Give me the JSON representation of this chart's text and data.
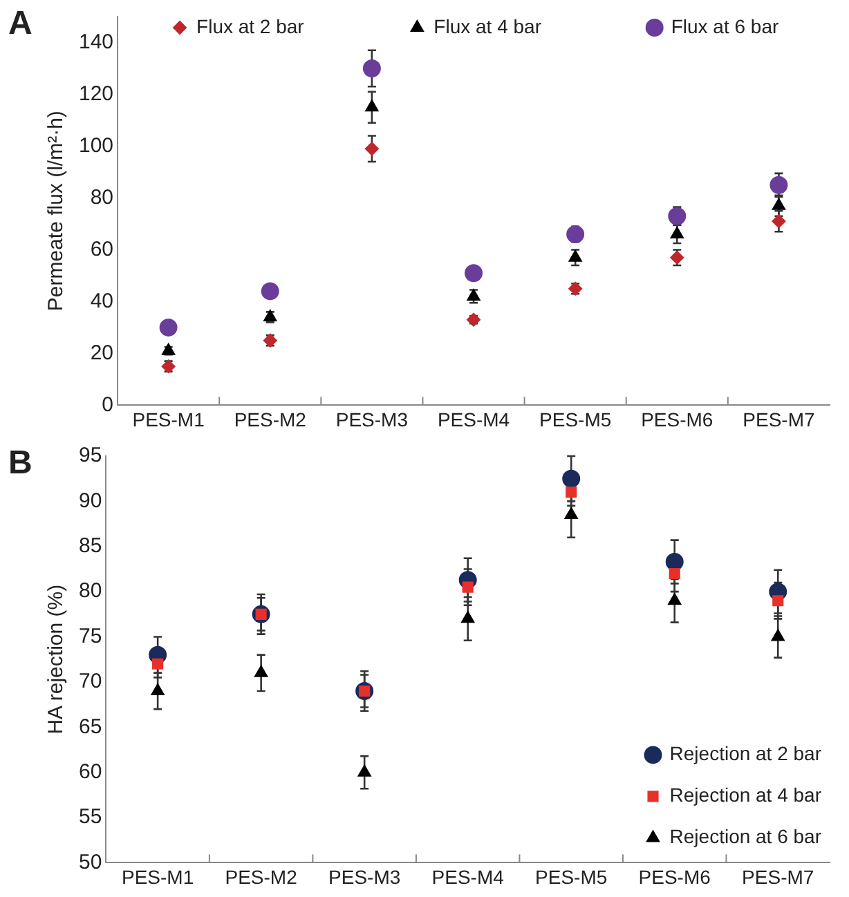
{
  "chart_data": [
    {
      "type": "scatter",
      "annotations": [
        "A"
      ],
      "ylabel": "Permeate flux (l/m²·h)",
      "categories": [
        "PES-M1",
        "PES-M2",
        "PES-M3",
        "PES-M4",
        "PES-M5",
        "PES-M6",
        "PES-M7"
      ],
      "ylim": [
        0,
        150
      ],
      "yticks": [
        0,
        20,
        40,
        60,
        80,
        100,
        120,
        140
      ],
      "grid": false,
      "legend": "top",
      "series": [
        {
          "name": "Flux at 2 bar",
          "color": "#c0272d",
          "marker": "diamond",
          "values": [
            15,
            25,
            99,
            33,
            45,
            57,
            71
          ],
          "errors": [
            2,
            2,
            5,
            1.5,
            2,
            3,
            4
          ]
        },
        {
          "name": "Flux at 4 bar",
          "color": "#000000",
          "marker": "triangle",
          "values": [
            21,
            34,
            115,
            42,
            57,
            66,
            77
          ],
          "errors": [
            1.5,
            2,
            6,
            2.5,
            3,
            3.5,
            4
          ]
        },
        {
          "name": "Flux at 6 bar",
          "color": "#6a3d9a",
          "marker": "circle",
          "values": [
            30,
            44,
            130,
            51,
            66,
            73,
            85
          ],
          "errors": [
            null,
            null,
            7,
            null,
            3,
            3.5,
            4.5
          ]
        }
      ]
    },
    {
      "type": "scatter",
      "annotations": [
        "B"
      ],
      "ylabel": "HA rejection (%)",
      "categories": [
        "PES-M1",
        "PES-M2",
        "PES-M3",
        "PES-M4",
        "PES-M5",
        "PES-M6",
        "PES-M7"
      ],
      "ylim": [
        50,
        95
      ],
      "yticks": [
        50,
        55,
        60,
        65,
        70,
        75,
        80,
        85,
        90,
        95
      ],
      "grid": false,
      "legend": "bottom right",
      "series": [
        {
          "name": "Rejection at 2 bar",
          "color": "#1a2a5a",
          "marker": "circle",
          "values": [
            73,
            77.5,
            69,
            81.3,
            92.5,
            83.3,
            80
          ],
          "errors": [
            2,
            2.2,
            2.2,
            2.4,
            2.5,
            2.4,
            2.4
          ]
        },
        {
          "name": "Rejection at 4 bar",
          "color": "#e8302a",
          "marker": "square",
          "values": [
            72,
            77.5,
            69,
            80.5,
            91,
            82,
            79
          ],
          "errors": [
            1.5,
            1.8,
            1.8,
            2,
            1.5,
            2,
            2
          ]
        },
        {
          "name": "Rejection at 6 bar",
          "color": "#000000",
          "marker": "triangle",
          "values": [
            69,
            71,
            60,
            77,
            88.5,
            79,
            75
          ],
          "errors": [
            2,
            2,
            1.8,
            2.4,
            2.5,
            2.4,
            2.3
          ]
        }
      ]
    }
  ]
}
